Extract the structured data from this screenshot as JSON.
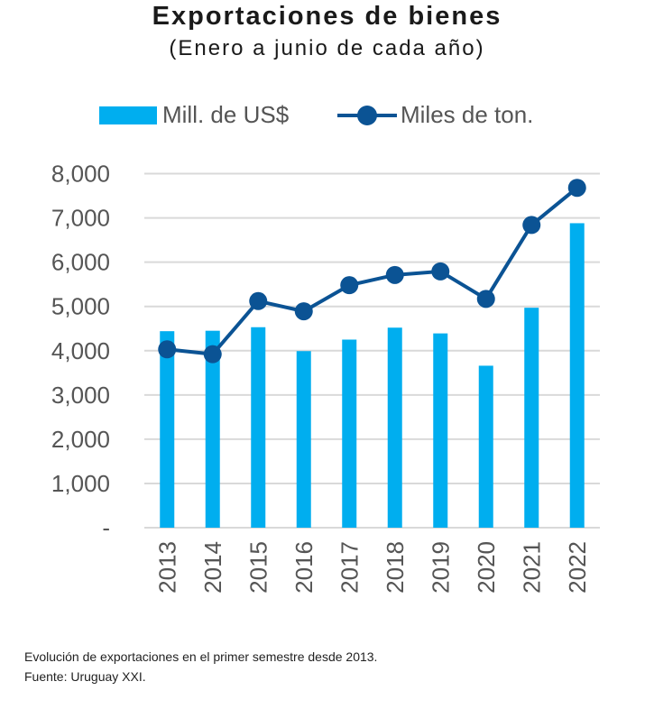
{
  "chart_data": {
    "type": "bar",
    "title": "Exportaciones de bienes",
    "subtitle": "(Enero a junio de cada año)",
    "categories": [
      "2013",
      "2014",
      "2015",
      "2016",
      "2017",
      "2018",
      "2019",
      "2020",
      "2021",
      "2022"
    ],
    "series": [
      {
        "name": "Mill. de US$",
        "type": "bar",
        "color": "#00aeef",
        "values": [
          4440,
          4450,
          4530,
          3990,
          4250,
          4520,
          4390,
          3660,
          4970,
          6880
        ]
      },
      {
        "name": "Miles de ton.",
        "type": "line",
        "color": "#0b5394",
        "values": [
          4030,
          3920,
          5120,
          4890,
          5480,
          5710,
          5790,
          5170,
          6840,
          7680
        ]
      }
    ],
    "ylim": [
      0,
      8000
    ],
    "yticks": [
      0,
      1000,
      2000,
      3000,
      4000,
      5000,
      6000,
      7000,
      8000
    ],
    "ytick_labels": [
      "-",
      "1,000",
      "2,000",
      "3,000",
      "4,000",
      "5,000",
      "6,000",
      "7,000",
      "8,000"
    ],
    "grid": true,
    "legend_position": "top",
    "xlabel": "",
    "ylabel": ""
  },
  "notes": [
    "Evolución de exportaciones en el primer semestre desde 2013.",
    "Fuente: Uruguay XXI."
  ]
}
